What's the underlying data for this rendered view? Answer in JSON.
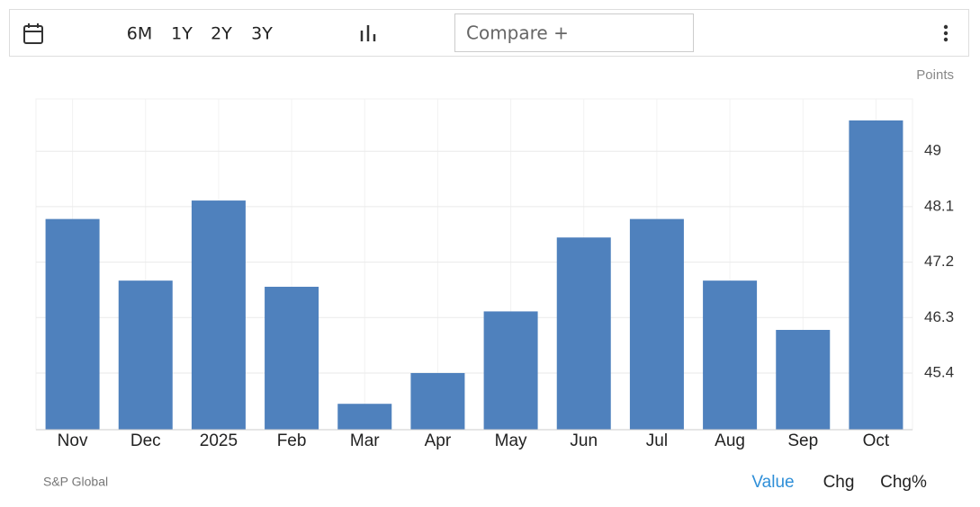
{
  "toolbar": {
    "ranges": [
      "6M",
      "1Y",
      "2Y",
      "3Y"
    ],
    "compare": "Compare +"
  },
  "chart_data": {
    "type": "bar",
    "y_label": "Points",
    "categories": [
      "Nov",
      "Dec",
      "2025",
      "Feb",
      "Mar",
      "Apr",
      "May",
      "Jun",
      "Jul",
      "Aug",
      "Sep",
      "Oct"
    ],
    "values": [
      47.9,
      46.9,
      48.2,
      46.8,
      44.9,
      45.4,
      46.4,
      47.6,
      47.9,
      46.9,
      46.1,
      49.5
    ],
    "color": "#4f81bd",
    "ylim": [
      44.48,
      49.85
    ],
    "yticks": [
      45.4,
      46.3,
      47.2,
      48.1,
      49.0
    ],
    "grid": true
  },
  "footer": {
    "source": "S&P Global",
    "views": [
      "Value",
      "Chg",
      "Chg%"
    ]
  }
}
